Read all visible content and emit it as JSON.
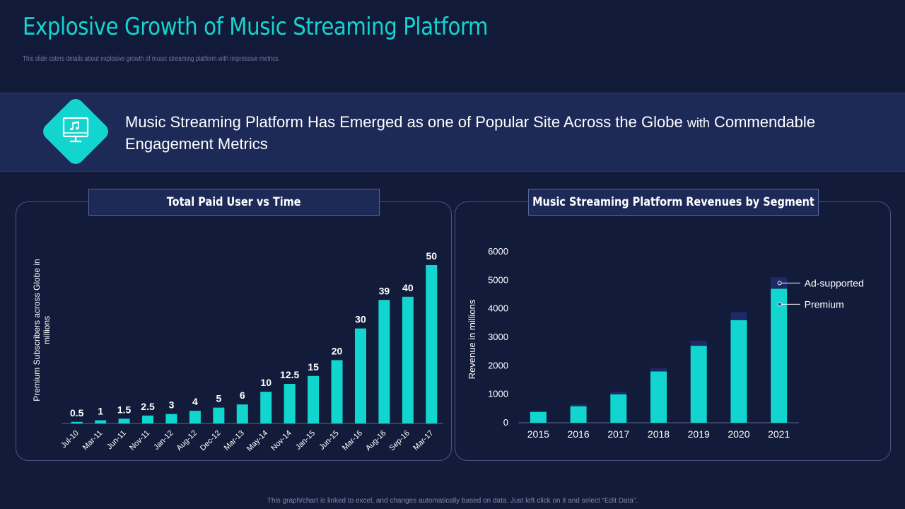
{
  "header": {
    "title": "Explosive Growth of Music Streaming Platform",
    "subtitle": "This slide caters details about explosive growth of music streaming platform with impressive metrics."
  },
  "banner": {
    "icon": "music-monitor-icon",
    "text_part1": "Music Streaming Platform Has Emerged as one of Popular Site Across the Globe ",
    "text_small": "with",
    "text_part2": " Commendable Engagement Metrics"
  },
  "panels": {
    "left_label": "Total Paid User vs Time",
    "right_label": "Music Streaming Platform Revenues by Segment"
  },
  "chart_data": [
    {
      "type": "bar",
      "title": "Total Paid User vs Time",
      "xlabel": "",
      "ylabel": "Premium Subscribers across Globe in millions",
      "ylim": [
        0,
        50
      ],
      "categories": [
        "Jul-10",
        "Mar-11",
        "Jun-11",
        "Nov-11",
        "Jan-12",
        "Aug-12",
        "Dec-12",
        "Mar-13",
        "May-14",
        "Nov-14",
        "Jan-15",
        "Jun-15",
        "Mar-16",
        "Aug-16",
        "Sep-16",
        "Mar-17"
      ],
      "values": [
        0.5,
        1,
        1.5,
        2.5,
        3,
        4,
        5,
        6,
        10,
        12.5,
        15,
        20,
        30,
        39,
        40,
        50
      ],
      "data_labels": [
        "0.5",
        "1",
        "1.5",
        "2.5",
        "3",
        "4",
        "5",
        "6",
        "10",
        "12.5",
        "15",
        "20",
        "30",
        "39",
        "40",
        "50"
      ],
      "color": "#13d5cf"
    },
    {
      "type": "bar",
      "stacked": true,
      "title": "Music Streaming Platform Revenues by Segment",
      "xlabel": "",
      "ylabel": "Revenue in millions",
      "ylim": [
        0,
        6000
      ],
      "yticks": [
        "0",
        "1000",
        "2000",
        "3000",
        "4000",
        "5000",
        "6000"
      ],
      "categories": [
        "2015",
        "2016",
        "2017",
        "2018",
        "2019",
        "2020",
        "2021"
      ],
      "series": [
        {
          "name": "Premium",
          "values": [
            380,
            580,
            1000,
            1800,
            2700,
            3600,
            4700
          ],
          "color": "#13d5cf"
        },
        {
          "name": "Ad-supported",
          "values": [
            40,
            60,
            80,
            120,
            180,
            280,
            400
          ],
          "color": "#1d2a66"
        }
      ],
      "legend": "right",
      "legend_labels": [
        "Ad-supported",
        "Premium"
      ]
    }
  ],
  "footer": {
    "note": "This graph/chart is linked to excel, and changes automatically based on data. Just left click on it and select “Edit Data”."
  }
}
